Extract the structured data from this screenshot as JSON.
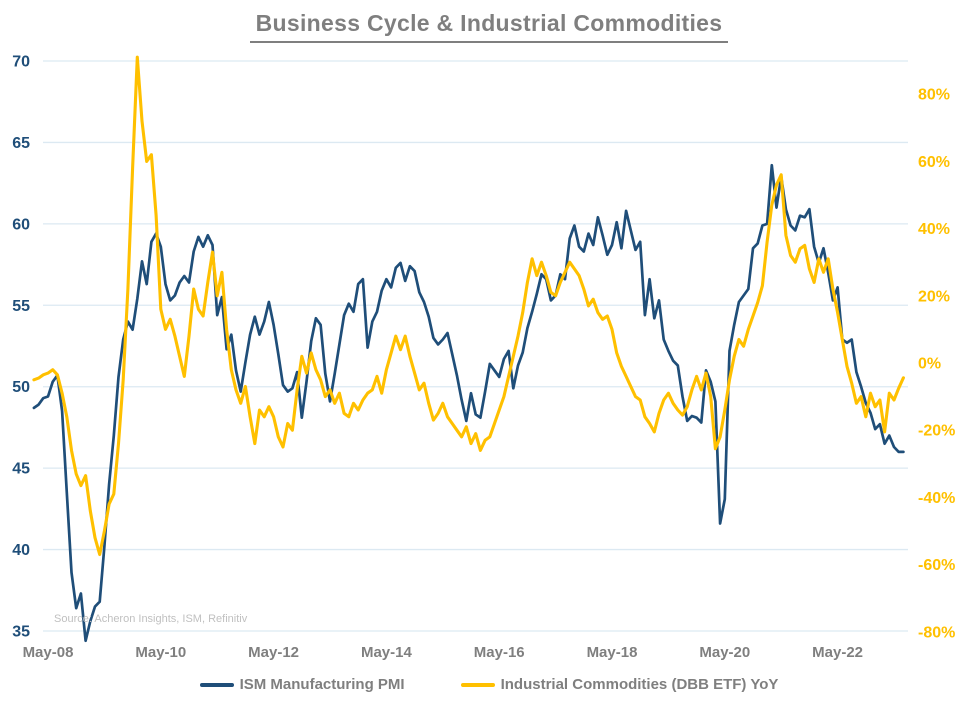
{
  "title": {
    "text": "Business Cycle & Industrial Commodities"
  },
  "source": {
    "text": "Source: Acheron Insights, ISM, Refinitiv"
  },
  "colors": {
    "pmi_line": "#1f4e79",
    "dbb_line": "#ffc000",
    "gridline": "#dce9f2",
    "left_axis_text": "#1f4e79",
    "right_axis_text": "#ffc000",
    "x_axis_text": "#7f7f7f",
    "title_text": "#7f7f7f",
    "legend_text": "#7f7f7f",
    "source_text": "#c0c0c0",
    "background": "#ffffff"
  },
  "legend": {
    "pmi_label": "ISM Manufacturing PMI",
    "dbb_label": "Industrial Commodities (DBB ETF) YoY"
  },
  "chart_data": {
    "type": "line",
    "title": "Business Cycle & Industrial Commodities",
    "x": {
      "start": "2008-02",
      "freq": "monthly",
      "count": 186
    },
    "x_tick_labels": [
      "May-08",
      "May-10",
      "May-12",
      "May-14",
      "May-16",
      "May-18",
      "May-20",
      "May-22"
    ],
    "left_axis": {
      "ticks": [
        70,
        65,
        60,
        55,
        50,
        45,
        40,
        35
      ],
      "ylim": [
        35,
        70
      ]
    },
    "right_axis": {
      "tick_labels": [
        "80%",
        "60%",
        "40%",
        "20%",
        "0%",
        "-20%",
        "-40%",
        "-60%",
        "-80%"
      ],
      "ticks": [
        80,
        60,
        40,
        20,
        0,
        -20,
        -40,
        -60,
        -80
      ],
      "ylim": [
        -80,
        80
      ]
    },
    "grid": "horizontal-only",
    "legend_position": "bottom",
    "series": [
      {
        "name": "ISM Manufacturing PMI",
        "axis": "left",
        "values": [
          48.7,
          48.9,
          49.3,
          49.4,
          50.3,
          50.7,
          48.5,
          43.5,
          38.6,
          36.4,
          37.3,
          34.4,
          35.6,
          36.5,
          36.8,
          40.2,
          44.0,
          47.0,
          50.6,
          52.9,
          54.0,
          53.5,
          55.4,
          57.7,
          56.3,
          58.9,
          59.4,
          58.6,
          56.3,
          55.3,
          55.6,
          56.4,
          56.8,
          56.4,
          58.3,
          59.2,
          58.6,
          59.3,
          58.7,
          54.4,
          55.5,
          52.3,
          53.2,
          51.0,
          49.7,
          51.5,
          53.2,
          54.3,
          53.2,
          54.0,
          55.2,
          53.8,
          52.0,
          50.1,
          49.7,
          49.9,
          50.9,
          48.1,
          50.3,
          52.8,
          54.2,
          53.8,
          50.8,
          49.1,
          50.8,
          52.6,
          54.4,
          55.1,
          54.6,
          56.3,
          56.6,
          52.4,
          54.0,
          54.6,
          55.9,
          56.6,
          56.1,
          57.3,
          57.6,
          56.5,
          57.4,
          57.1,
          55.8,
          55.2,
          54.3,
          53.0,
          52.6,
          52.9,
          53.3,
          52.0,
          50.7,
          49.2,
          47.9,
          49.6,
          48.3,
          48.1,
          49.7,
          51.4,
          51.0,
          50.6,
          51.7,
          52.2,
          49.9,
          51.3,
          52.1,
          53.6,
          54.6,
          55.7,
          56.9,
          56.6,
          55.3,
          55.6,
          56.9,
          56.6,
          59.1,
          59.9,
          58.6,
          58.3,
          59.4,
          58.7,
          60.4,
          59.3,
          58.1,
          58.7,
          60.1,
          58.5,
          60.8,
          59.6,
          58.4,
          58.9,
          54.4,
          56.6,
          54.2,
          55.3,
          52.9,
          52.2,
          51.6,
          51.3,
          49.4,
          47.9,
          48.2,
          48.1,
          47.8,
          51.0,
          50.3,
          49.1,
          41.6,
          43.1,
          52.2,
          53.8,
          55.2,
          55.6,
          56.0,
          58.5,
          58.8,
          59.9,
          60.0,
          63.6,
          61.0,
          62.9,
          60.9,
          59.9,
          59.6,
          60.5,
          60.4,
          60.9,
          58.6,
          57.6,
          58.5,
          57.0,
          55.3,
          56.1,
          52.9,
          52.7,
          52.9,
          50.9,
          50.0,
          49.0,
          48.4,
          47.4,
          47.7,
          46.5,
          47.0,
          46.3,
          46.0,
          46.0
        ]
      },
      {
        "name": "Industrial Commodities (DBB ETF) YoY",
        "axis": "right",
        "values": [
          -5,
          -4.5,
          -3.5,
          -3,
          -2,
          -3.5,
          -9,
          -16,
          -26,
          -33,
          -36.5,
          -33.5,
          -44,
          -52,
          -57,
          -50,
          -42,
          -39,
          -24,
          -5,
          22,
          58,
          91,
          72,
          60,
          62,
          44,
          16,
          10,
          13,
          8,
          2,
          -4,
          8,
          22,
          16,
          14,
          24,
          33,
          20,
          27,
          10,
          -2,
          -8,
          -12,
          -7,
          -16,
          -24,
          -14,
          -16,
          -13,
          -16,
          -22,
          -25,
          -18,
          -20,
          -8,
          2,
          -3,
          3,
          -2,
          -5,
          -10,
          -8,
          -12,
          -9,
          -15,
          -16,
          -12,
          -14,
          -11,
          -9,
          -8,
          -4,
          -9,
          -2,
          3,
          8,
          4,
          8,
          2,
          -3,
          -8,
          -6,
          -12,
          -17,
          -15,
          -12,
          -16,
          -18,
          -20,
          -22,
          -19,
          -24,
          -21,
          -26,
          -23,
          -22,
          -18,
          -14,
          -10,
          -4,
          2,
          8,
          15,
          24,
          31,
          26,
          30,
          26,
          21,
          20,
          24,
          27,
          30,
          28,
          26,
          22,
          17,
          19,
          15,
          13,
          14,
          10,
          3,
          -1,
          -4,
          -7,
          -10,
          -11,
          -16,
          -18,
          -20.5,
          -15,
          -11,
          -9,
          -12,
          -14,
          -15.5,
          -13,
          -8,
          -4,
          -8,
          -3,
          -10,
          -25.5,
          -22,
          -14,
          -5,
          2,
          7,
          5,
          10,
          14,
          18,
          23,
          36,
          47,
          53,
          56,
          38,
          32,
          30,
          34,
          35,
          28,
          24,
          31,
          27,
          31,
          22,
          15,
          7,
          -1,
          -6,
          -12,
          -10,
          -16,
          -9,
          -13,
          -11,
          -20.5,
          -9,
          -11,
          -7.5,
          -4.4
        ]
      }
    ]
  }
}
